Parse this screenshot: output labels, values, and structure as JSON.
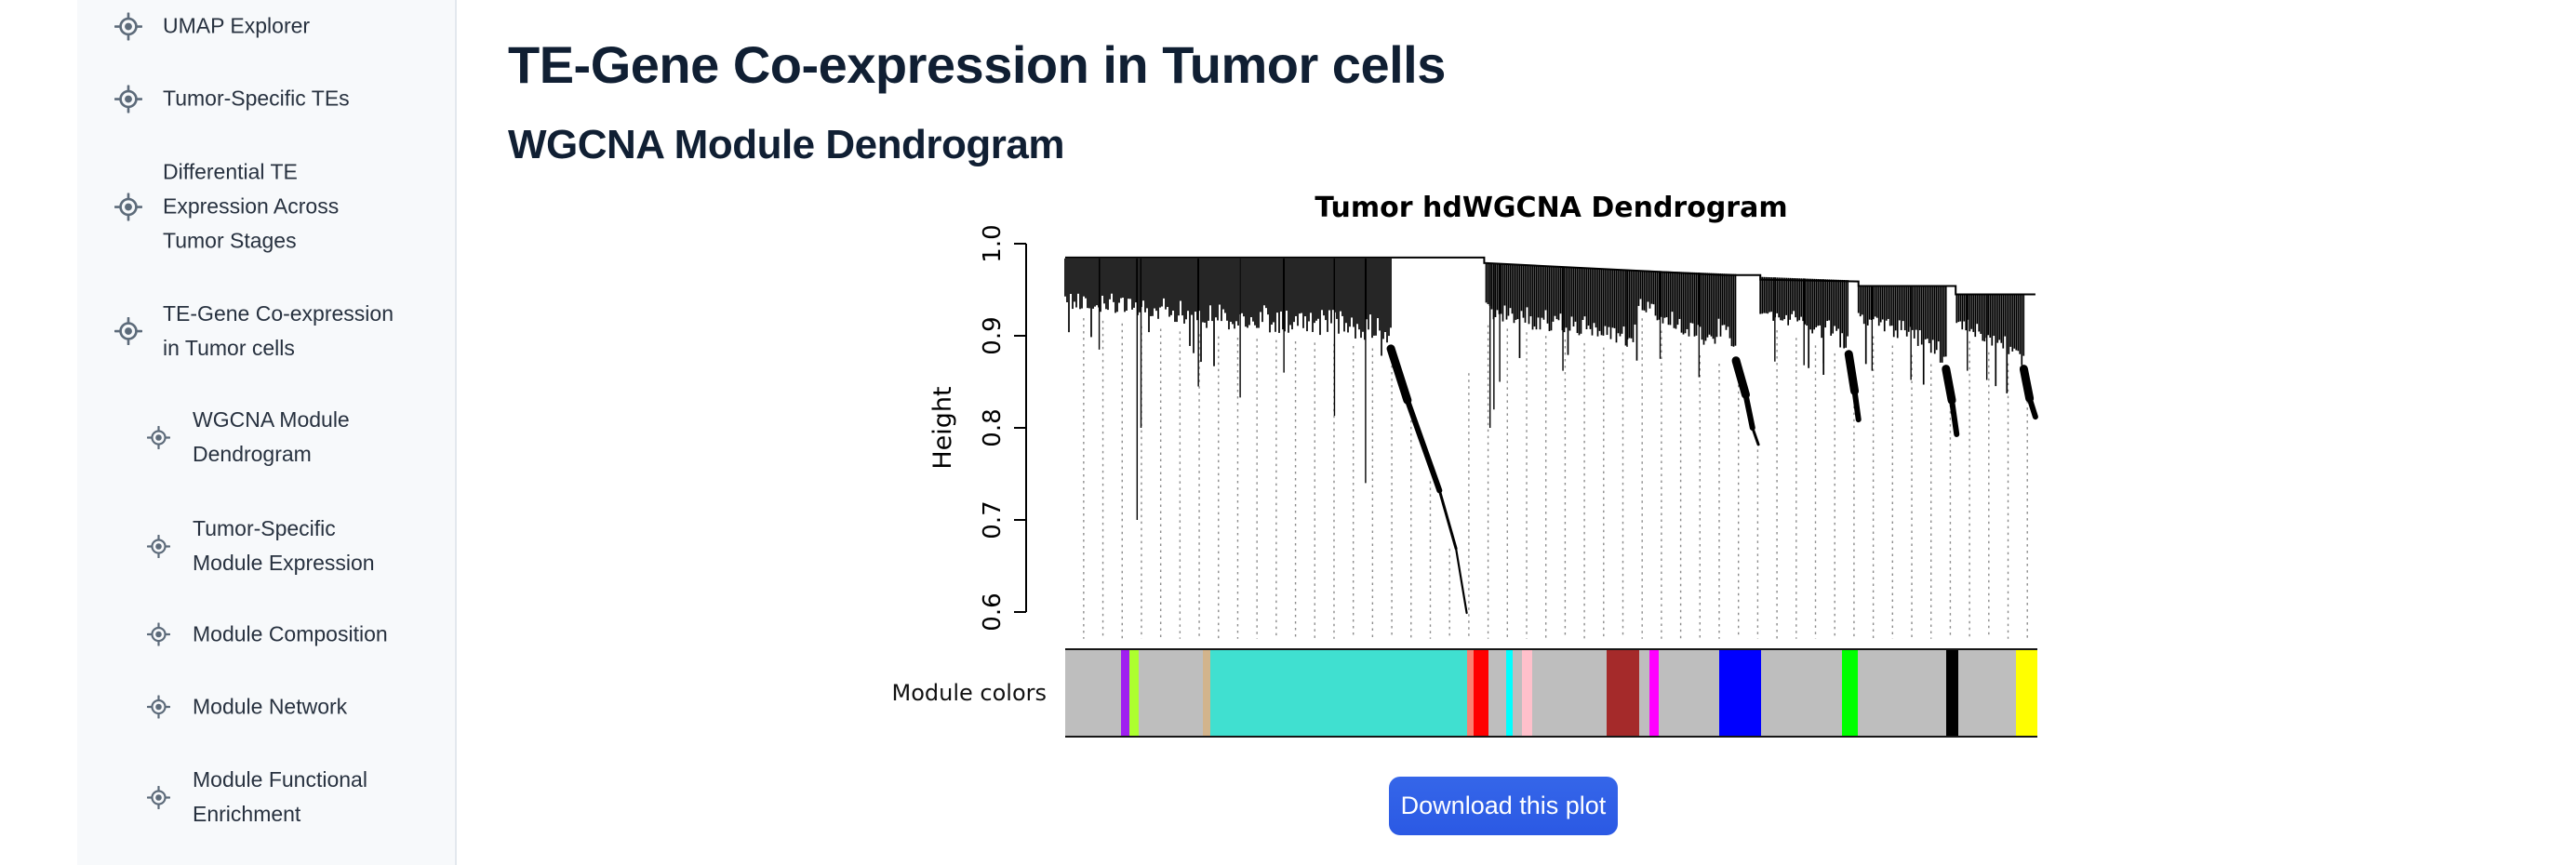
{
  "sidebar": {
    "items": [
      {
        "label": "UMAP Explorer",
        "level": 1
      },
      {
        "label": "Tumor-Specific TEs",
        "level": 1
      },
      {
        "label": "Differential TE Expression Across Tumor Stages",
        "level": 1
      },
      {
        "label": "TE-Gene Co-expression in Tumor cells",
        "level": 1
      },
      {
        "label": "WGCNA Module Dendrogram",
        "level": 2
      },
      {
        "label": "Tumor-Specific Module Expression",
        "level": 2
      },
      {
        "label": "Module Composition",
        "level": 2
      },
      {
        "label": "Module Network",
        "level": 2
      },
      {
        "label": "Module Functional Enrichment",
        "level": 2
      }
    ]
  },
  "main": {
    "title": "TE-Gene Co-expression in Tumor cells",
    "subtitle": "WGCNA Module Dendrogram",
    "download_button_label": "Download this plot",
    "button_color": "#2e5ce5"
  },
  "chart_data": {
    "type": "dendrogram",
    "title": "Tumor hdWGCNA Dendrogram",
    "ylabel": "Height",
    "ylim": [
      0.6,
      1.0
    ],
    "yticks": [
      0.6,
      0.7,
      0.8,
      0.9,
      1.0
    ],
    "root_height": 0.985,
    "color_bar_label": "Module colors",
    "guide_lines": {
      "count": 50,
      "first_fx": 0.019,
      "step_fx": 0.01981,
      "bottom_h": 0.571
    },
    "guide_top": [
      [
        0,
        0.928
      ],
      [
        0.15,
        0.906
      ],
      [
        0.28,
        0.897
      ],
      [
        0.32,
        0.892
      ],
      [
        0.335,
        0.884
      ],
      [
        0.36,
        0.8
      ],
      [
        0.39,
        0.7
      ],
      [
        0.405,
        0.63
      ],
      [
        0.418,
        0.93
      ],
      [
        0.433,
        0.918
      ],
      [
        0.54,
        0.897
      ],
      [
        0.585,
        0.885
      ],
      [
        0.592,
        0.926
      ],
      [
        0.66,
        0.88
      ],
      [
        0.69,
        0.87
      ],
      [
        0.705,
        0.81
      ],
      [
        0.713,
        0.78
      ],
      [
        0.718,
        0.918
      ],
      [
        0.79,
        0.888
      ],
      [
        0.806,
        0.878
      ],
      [
        0.812,
        0.84
      ],
      [
        0.8165,
        0.913
      ],
      [
        0.893,
        0.874
      ],
      [
        0.906,
        0.862
      ],
      [
        0.912,
        0.83
      ],
      [
        0.9175,
        0.908
      ],
      [
        0.975,
        0.873
      ],
      [
        0.986,
        0.862
      ],
      [
        0.992,
        0.83
      ],
      [
        0.998,
        0.81
      ]
    ],
    "top_path": [
      [
        0,
        0.985
      ],
      [
        0.431,
        0.985
      ],
      [
        0.431,
        0.979
      ],
      [
        0.677,
        0.966
      ],
      [
        0.715,
        0.966
      ],
      [
        0.715,
        0.961
      ],
      [
        0.816,
        0.959
      ],
      [
        0.816,
        0.954
      ],
      [
        0.916,
        0.954
      ],
      [
        0.916,
        0.945
      ],
      [
        0.998,
        0.945
      ]
    ],
    "clusters": [
      {
        "x0": 0.0,
        "x1": 0.413,
        "top0": 0.984,
        "top1": 0.984,
        "env": [
          [
            0,
            0.93
          ],
          [
            0.053,
            0.924
          ],
          [
            0.148,
            0.908
          ],
          [
            0.225,
            0.902
          ],
          [
            0.282,
            0.899
          ],
          [
            0.321,
            0.894
          ],
          [
            0.335,
            0.886
          ]
        ],
        "tail": [
          [
            0.335,
            0.886
          ],
          [
            0.352,
            0.83
          ],
          [
            0.385,
            0.732
          ],
          [
            0.402,
            0.669
          ],
          [
            0.413,
            0.599
          ]
        ],
        "spikes": [
          [
            0.035,
            0.885
          ],
          [
            0.074,
            0.7
          ],
          [
            0.078,
            0.8
          ],
          [
            0.137,
            0.845
          ],
          [
            0.18,
            0.833
          ],
          [
            0.225,
            0.86
          ],
          [
            0.277,
            0.813
          ],
          [
            0.309,
            0.74
          ]
        ]
      },
      {
        "x0": 0.433,
        "x1": 0.713,
        "top0": 0.978,
        "top1": 0.966,
        "env": [
          [
            0.433,
            0.92
          ],
          [
            0.49,
            0.904
          ],
          [
            0.54,
            0.899
          ],
          [
            0.585,
            0.887
          ],
          [
            0.592,
            0.928
          ],
          [
            0.63,
            0.903
          ],
          [
            0.66,
            0.882
          ],
          [
            0.678,
            0.897
          ],
          [
            0.69,
            0.873
          ]
        ],
        "tail": [
          [
            0.69,
            0.873
          ],
          [
            0.7,
            0.836
          ],
          [
            0.707,
            0.8
          ],
          [
            0.713,
            0.782
          ]
        ],
        "spikes": [
          [
            0.437,
            0.8
          ],
          [
            0.441,
            0.82
          ],
          [
            0.447,
            0.85
          ],
          [
            0.512,
            0.862
          ],
          [
            0.578,
            0.888
          ],
          [
            0.612,
            0.875
          ],
          [
            0.652,
            0.855
          ]
        ]
      },
      {
        "x0": 0.715,
        "x1": 0.816,
        "top0": 0.964,
        "top1": 0.96,
        "env": [
          [
            0.715,
            0.92
          ],
          [
            0.76,
            0.905
          ],
          [
            0.79,
            0.89
          ],
          [
            0.806,
            0.88
          ]
        ],
        "tail": [
          [
            0.806,
            0.88
          ],
          [
            0.812,
            0.84
          ],
          [
            0.816,
            0.809
          ]
        ],
        "spikes": [
          [
            0.73,
            0.872
          ],
          [
            0.76,
            0.868
          ],
          [
            0.78,
            0.87
          ]
        ]
      },
      {
        "x0": 0.816,
        "x1": 0.917,
        "top0": 0.953,
        "top1": 0.953,
        "env": [
          [
            0.816,
            0.915
          ],
          [
            0.86,
            0.895
          ],
          [
            0.893,
            0.876
          ],
          [
            0.906,
            0.864
          ]
        ],
        "tail": [
          [
            0.906,
            0.864
          ],
          [
            0.912,
            0.83
          ],
          [
            0.917,
            0.793
          ]
        ],
        "spikes": [
          [
            0.83,
            0.862
          ],
          [
            0.87,
            0.852
          ]
        ]
      },
      {
        "x0": 0.917,
        "x1": 0.998,
        "top0": 0.944,
        "top1": 0.944,
        "env": [
          [
            0.917,
            0.91
          ],
          [
            0.95,
            0.89
          ],
          [
            0.975,
            0.875
          ],
          [
            0.986,
            0.864
          ]
        ],
        "tail": [
          [
            0.986,
            0.864
          ],
          [
            0.992,
            0.832
          ],
          [
            0.998,
            0.812
          ]
        ],
        "spikes": [
          [
            0.928,
            0.862
          ],
          [
            0.948,
            0.852
          ]
        ]
      }
    ],
    "module_segments": [
      {
        "color_name": "grey",
        "hex": "#BEBEBE",
        "width_pct": 5.74
      },
      {
        "color_name": "purple",
        "hex": "#A020F0",
        "width_pct": 0.861
      },
      {
        "color_name": "greenyellow",
        "hex": "#ADFF2F",
        "width_pct": 0.957
      },
      {
        "color_name": "grey",
        "hex": "#BEBEBE",
        "width_pct": 6.603
      },
      {
        "color_name": "tan",
        "hex": "#D2B48C",
        "width_pct": 0.766
      },
      {
        "color_name": "turquoise",
        "hex": "#40E0D0",
        "width_pct": 26.41
      },
      {
        "color_name": "salmon",
        "hex": "#FA8072",
        "width_pct": 0.67
      },
      {
        "color_name": "red",
        "hex": "#FF0000",
        "width_pct": 1.531
      },
      {
        "color_name": "grey",
        "hex": "#BEBEBE",
        "width_pct": 1.818
      },
      {
        "color_name": "cyan",
        "hex": "#00FFFF",
        "width_pct": 0.67
      },
      {
        "color_name": "grey",
        "hex": "#BEBEBE",
        "width_pct": 0.957
      },
      {
        "color_name": "pink",
        "hex": "#FFC0CB",
        "width_pct": 1.053
      },
      {
        "color_name": "grey",
        "hex": "#BEBEBE",
        "width_pct": 7.656
      },
      {
        "color_name": "brown",
        "hex": "#A52A2A",
        "width_pct": 3.349
      },
      {
        "color_name": "grey",
        "hex": "#BEBEBE",
        "width_pct": 1.053
      },
      {
        "color_name": "magenta",
        "hex": "#FF00FF",
        "width_pct": 0.957
      },
      {
        "color_name": "grey",
        "hex": "#BEBEBE",
        "width_pct": 6.22
      },
      {
        "color_name": "blue",
        "hex": "#0000FF",
        "width_pct": 4.306
      },
      {
        "color_name": "grey",
        "hex": "#BEBEBE",
        "width_pct": 8.325
      },
      {
        "color_name": "green",
        "hex": "#00FF00",
        "width_pct": 1.627
      },
      {
        "color_name": "grey",
        "hex": "#BEBEBE",
        "width_pct": 9.091
      },
      {
        "color_name": "black",
        "hex": "#000000",
        "width_pct": 1.244
      },
      {
        "color_name": "grey",
        "hex": "#BEBEBE",
        "width_pct": 5.933
      },
      {
        "color_name": "yellow",
        "hex": "#FFFF00",
        "width_pct": 2.201
      }
    ]
  }
}
